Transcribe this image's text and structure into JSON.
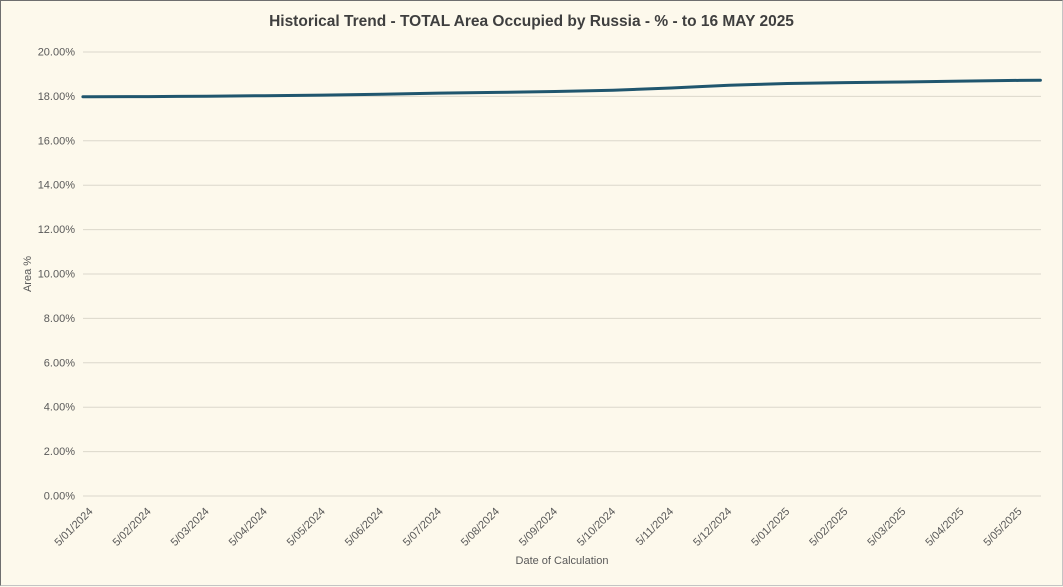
{
  "chart_data": {
    "type": "line",
    "title": "Historical Trend - TOTAL Area Occupied by Russia - % - to 16 MAY 2025",
    "xlabel": "Date of Calculation",
    "ylabel": "Area %",
    "ylim_percent": [
      0,
      20
    ],
    "grid": "horizontal",
    "legend": "none",
    "y_tick_labels": [
      "0.00%",
      "2.00%",
      "4.00%",
      "6.00%",
      "8.00%",
      "10.00%",
      "12.00%",
      "14.00%",
      "16.00%",
      "18.00%",
      "20.00%"
    ],
    "x_tick_labels": [
      "5/01/2024",
      "5/02/2024",
      "5/03/2024",
      "5/04/2024",
      "5/05/2024",
      "5/06/2024",
      "5/07/2024",
      "5/08/2024",
      "5/09/2024",
      "5/10/2024",
      "5/11/2024",
      "5/12/2024",
      "5/01/2025",
      "5/02/2025",
      "5/03/2025",
      "5/04/2025",
      "5/05/2025"
    ],
    "colors": {
      "background": "#fdf9ec",
      "line": "#20566e",
      "gridline": "#dbd7cb",
      "title_text": "#3f3f3f",
      "axis_text": "#595959"
    },
    "series": [
      {
        "name": "TOTAL Area Occupied by Russia (%)",
        "points": [
          {
            "date": "1/01/2024",
            "value": 17.98
          },
          {
            "date": "5/01/2024",
            "value": 17.98
          },
          {
            "date": "5/02/2024",
            "value": 17.99
          },
          {
            "date": "20/02/2024",
            "value": 18.0
          },
          {
            "date": "5/03/2024",
            "value": 18.01
          },
          {
            "date": "5/04/2024",
            "value": 18.03
          },
          {
            "date": "5/05/2024",
            "value": 18.06
          },
          {
            "date": "5/06/2024",
            "value": 18.1
          },
          {
            "date": "5/07/2024",
            "value": 18.15
          },
          {
            "date": "5/08/2024",
            "value": 18.18
          },
          {
            "date": "5/09/2024",
            "value": 18.22
          },
          {
            "date": "5/10/2024",
            "value": 18.28
          },
          {
            "date": "5/11/2024",
            "value": 18.38
          },
          {
            "date": "20/11/2024",
            "value": 18.44
          },
          {
            "date": "5/12/2024",
            "value": 18.5
          },
          {
            "date": "20/12/2024",
            "value": 18.54
          },
          {
            "date": "5/01/2025",
            "value": 18.58
          },
          {
            "date": "5/02/2025",
            "value": 18.62
          },
          {
            "date": "5/03/2025",
            "value": 18.65
          },
          {
            "date": "5/04/2025",
            "value": 18.69
          },
          {
            "date": "5/05/2025",
            "value": 18.72
          },
          {
            "date": "16/05/2025",
            "value": 18.73
          }
        ]
      }
    ]
  }
}
